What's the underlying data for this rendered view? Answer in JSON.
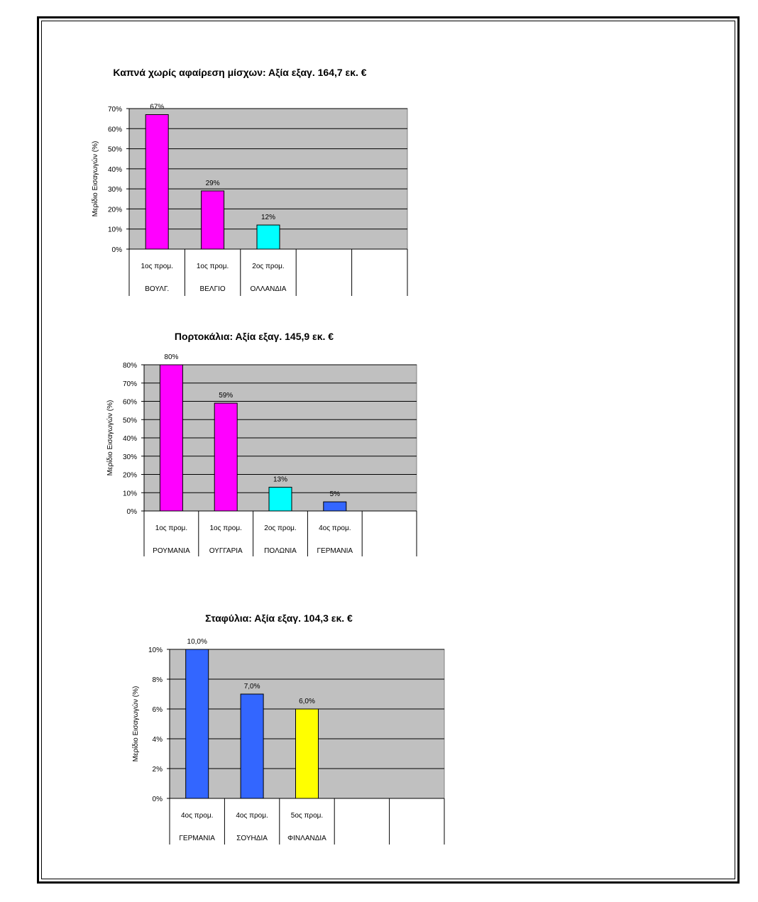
{
  "chart_data": [
    {
      "type": "bar",
      "title": "Καπνά χωρίς αφαίρεση μίσχων: Αξία εξαγ. 164,7 εκ. €",
      "ylabel": "Μερίδιο Εισαγωγών (%)",
      "ylim": [
        0,
        70
      ],
      "yticks": [
        "0%",
        "10%",
        "20%",
        "30%",
        "40%",
        "50%",
        "60%",
        "70%"
      ],
      "categories": [
        {
          "rank": "1ος προμ.",
          "country": "ΒΟΥΛΓ."
        },
        {
          "rank": "1ος προμ.",
          "country": "ΒΕΛΓΙΟ"
        },
        {
          "rank": "2ος προμ.",
          "country": "ΟΛΛΑΝΔΙΑ"
        },
        {
          "rank": "",
          "country": ""
        },
        {
          "rank": "",
          "country": ""
        }
      ],
      "values": [
        67,
        29,
        12,
        null,
        null
      ],
      "value_labels": [
        "67%",
        "29%",
        "12%",
        "",
        ""
      ],
      "colors": [
        "#ff00ff",
        "#ff00ff",
        "#00ffff",
        "",
        ""
      ],
      "grid": true,
      "background": "#c0c0c0"
    },
    {
      "type": "bar",
      "title": "Πορτοκάλια: Αξία εξαγ. 145,9 εκ. €",
      "ylabel": "Μερίδιο Εισαγωγών (%)",
      "ylim": [
        0,
        80
      ],
      "yticks": [
        "0%",
        "10%",
        "20%",
        "30%",
        "40%",
        "50%",
        "60%",
        "70%",
        "80%"
      ],
      "categories": [
        {
          "rank": "1ος προμ.",
          "country": "ΡΟΥΜΑΝΙΑ"
        },
        {
          "rank": "1ος προμ.",
          "country": "ΟΥΓΓΑΡΙΑ"
        },
        {
          "rank": "2ος προμ.",
          "country": "ΠΟΛΩΝΙΑ"
        },
        {
          "rank": "4ος προμ.",
          "country": "ΓΕΡΜΑΝΙΑ"
        },
        {
          "rank": "",
          "country": ""
        }
      ],
      "values": [
        80,
        59,
        13,
        5,
        null
      ],
      "value_labels": [
        "80%",
        "59%",
        "13%",
        "5%",
        ""
      ],
      "colors": [
        "#ff00ff",
        "#ff00ff",
        "#00ffff",
        "#3366ff",
        ""
      ],
      "grid": true,
      "background": "#c0c0c0"
    },
    {
      "type": "bar",
      "title": "Σταφύλια: Αξία εξαγ. 104,3 εκ. €",
      "ylabel": "Μερίδιο Εισαγωγών (%)",
      "ylim": [
        0,
        10
      ],
      "yticks": [
        "0%",
        "2%",
        "4%",
        "6%",
        "8%",
        "10%"
      ],
      "categories": [
        {
          "rank": "4ος προμ.",
          "country": "ΓΕΡΜΑΝΙΑ"
        },
        {
          "rank": "4ος προμ.",
          "country": "ΣΟΥΗΔΙΑ"
        },
        {
          "rank": "5ος προμ.",
          "country": "ΦΙΝΛΑΝΔΙΑ"
        },
        {
          "rank": "",
          "country": ""
        },
        {
          "rank": "",
          "country": ""
        }
      ],
      "values": [
        10.0,
        7.0,
        6.0,
        null,
        null
      ],
      "value_labels": [
        "10,0%",
        "7,0%",
        "6,0%",
        "",
        ""
      ],
      "colors": [
        "#3366ff",
        "#3366ff",
        "#ffff00",
        "",
        ""
      ],
      "grid": true,
      "background": "#c0c0c0"
    }
  ]
}
